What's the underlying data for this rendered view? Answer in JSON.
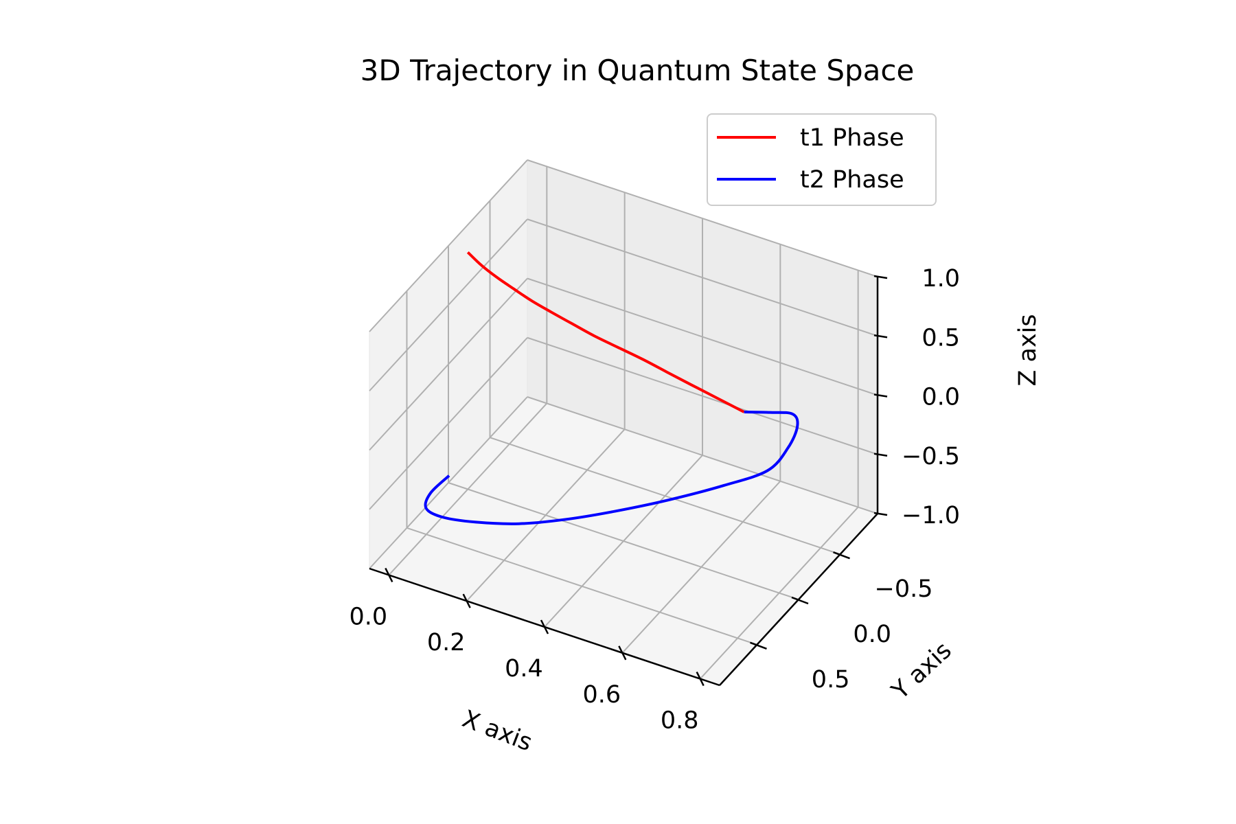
{
  "chart_data": {
    "type": "line",
    "title": "3D Trajectory in Quantum State Space",
    "xlabel": "X axis",
    "ylabel": "Y axis",
    "zlabel": "Z axis",
    "xticks": [
      "0.0",
      "0.2",
      "0.4",
      "0.6",
      "0.8"
    ],
    "yticks": [
      "−0.5",
      "0.0",
      "0.5"
    ],
    "zticks": [
      "−1.0",
      "−0.5",
      "0.0",
      "0.5",
      "1.0"
    ],
    "xlim": [
      -0.05,
      0.85
    ],
    "ylim": [
      -0.95,
      0.95
    ],
    "zlim": [
      -1.0,
      1.0
    ],
    "grid": true,
    "legend_location": "top-right",
    "series": [
      {
        "name": "t1 Phase",
        "color": "#ff0000",
        "points": [
          {
            "x": 0.0,
            "y": 0.0,
            "z": 1.0
          },
          {
            "x": 0.05,
            "y": 0.07,
            "z": 0.998
          },
          {
            "x": 0.1,
            "y": 0.12,
            "z": 0.99
          },
          {
            "x": 0.15,
            "y": 0.15,
            "z": 0.97
          },
          {
            "x": 0.2,
            "y": 0.17,
            "z": 0.94
          },
          {
            "x": 0.25,
            "y": 0.17,
            "z": 0.9
          },
          {
            "x": 0.3,
            "y": 0.15,
            "z": 0.84
          },
          {
            "x": 0.35,
            "y": 0.12,
            "z": 0.77
          },
          {
            "x": 0.4,
            "y": 0.07,
            "z": 0.69
          },
          {
            "x": 0.45,
            "y": 0.01,
            "z": 0.6
          },
          {
            "x": 0.5,
            "y": -0.05,
            "z": 0.5
          },
          {
            "x": 0.55,
            "y": -0.12,
            "z": 0.39
          },
          {
            "x": 0.6,
            "y": -0.2,
            "z": 0.27
          },
          {
            "x": 0.65,
            "y": -0.28,
            "z": 0.15
          }
        ]
      },
      {
        "name": "t2 Phase",
        "color": "#0000ff",
        "points": [
          {
            "x": 0.65,
            "y": -0.28,
            "z": 0.15
          },
          {
            "x": 0.7,
            "y": -0.36,
            "z": 0.14
          },
          {
            "x": 0.745,
            "y": -0.42,
            "z": 0.13
          },
          {
            "x": 0.77,
            "y": -0.36,
            "z": 0.1
          },
          {
            "x": 0.78,
            "y": -0.2,
            "z": 0.05
          },
          {
            "x": 0.77,
            "y": 0.0,
            "z": 0.0
          },
          {
            "x": 0.7,
            "y": 0.2,
            "z": -0.05
          },
          {
            "x": 0.6,
            "y": 0.4,
            "z": -0.13
          },
          {
            "x": 0.5,
            "y": 0.56,
            "z": -0.21
          },
          {
            "x": 0.4,
            "y": 0.69,
            "z": -0.29
          },
          {
            "x": 0.3,
            "y": 0.79,
            "z": -0.36
          },
          {
            "x": 0.2,
            "y": 0.85,
            "z": -0.41
          },
          {
            "x": 0.12,
            "y": 0.87,
            "z": -0.44
          },
          {
            "x": 0.07,
            "y": 0.83,
            "z": -0.45
          },
          {
            "x": 0.06,
            "y": 0.73,
            "z": -0.41
          },
          {
            "x": 0.08,
            "y": 0.6,
            "z": -0.34
          }
        ]
      }
    ]
  }
}
